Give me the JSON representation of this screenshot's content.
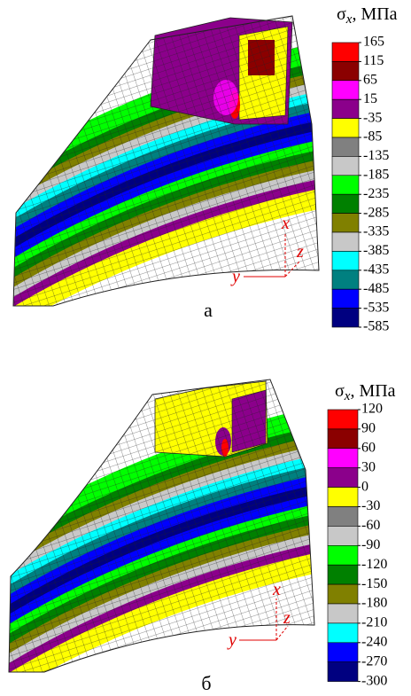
{
  "figures": [
    {
      "legend": {
        "symbol": "σ",
        "subscript": "x",
        "unit": ", МПа",
        "levels": [
          165,
          115,
          65,
          15,
          -35,
          -85,
          -135,
          -185,
          -235,
          -285,
          -335,
          -385,
          -435,
          -485,
          -535,
          -585
        ],
        "colors": [
          "#ff0000",
          "#8b0000",
          "#ff00ff",
          "#8b008b",
          "#ffff00",
          "#808080",
          "#c8c8c8",
          "#00ff00",
          "#008000",
          "#808000",
          "#c8c8c8",
          "#00ffff",
          "#008080",
          "#0000ff",
          "#000080"
        ]
      },
      "axes": {
        "x": "x",
        "y": "y",
        "z": "z"
      },
      "caption": "а"
    },
    {
      "legend": {
        "symbol": "σ",
        "subscript": "x",
        "unit": ", МПа",
        "levels": [
          120,
          90,
          60,
          30,
          0,
          -30,
          -60,
          -90,
          -120,
          -150,
          -180,
          -210,
          -240,
          -270,
          -300
        ],
        "colors": [
          "#ff0000",
          "#8b0000",
          "#ff00ff",
          "#8b008b",
          "#ffff00",
          "#808080",
          "#c8c8c8",
          "#00ff00",
          "#008000",
          "#808000",
          "#c8c8c8",
          "#00ffff",
          "#0000ff",
          "#000080"
        ]
      },
      "axes": {
        "x": "x",
        "y": "y",
        "z": "z"
      },
      "caption": "б"
    }
  ]
}
